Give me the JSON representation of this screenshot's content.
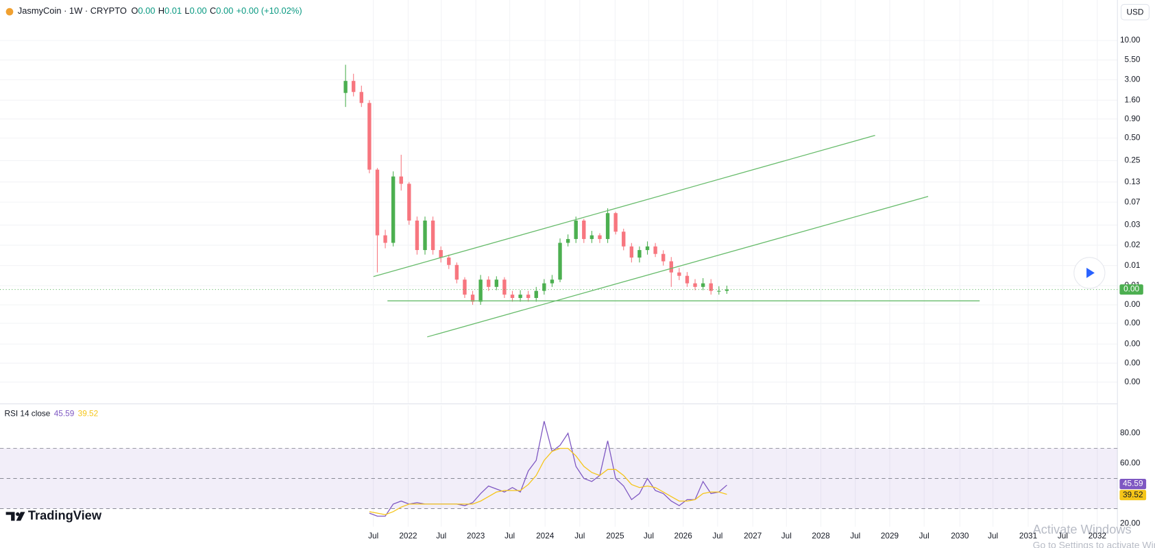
{
  "header": {
    "symbol": "JasmyCoin · 1W · CRYPTO",
    "ohlc": [
      {
        "key": "O",
        "value": "0.00"
      },
      {
        "key": "H",
        "value": "0.01"
      },
      {
        "key": "L",
        "value": "0.00"
      },
      {
        "key": "C",
        "value": "0.00"
      }
    ],
    "change": "+0.00 (+10.02%)",
    "currency": "USD"
  },
  "charts": [
    {
      "type": "candlestick",
      "log": true,
      "grid": true,
      "up_color": "#4caf50",
      "down_color": "#f7767f",
      "xlim": [
        -261,
        583
      ],
      "ylim": [
        0.000147,
        17.6
      ],
      "xticks": [
        {
          "value": 21,
          "label": "Jul"
        },
        {
          "value": 47.3,
          "label": "2022"
        },
        {
          "value": 72.3,
          "label": "Jul"
        },
        {
          "value": 98.4,
          "label": "2023"
        },
        {
          "value": 124,
          "label": "Jul"
        },
        {
          "value": 150.7,
          "label": "2024"
        },
        {
          "value": 176.9,
          "label": "Jul"
        },
        {
          "value": 203.6,
          "label": "2025"
        },
        {
          "value": 229,
          "label": "Jul"
        },
        {
          "value": 255,
          "label": "2026"
        },
        {
          "value": 281,
          "label": "Jul"
        },
        {
          "value": 307.6,
          "label": "2027"
        },
        {
          "value": 333,
          "label": "Jul"
        },
        {
          "value": 359,
          "label": "2028"
        },
        {
          "value": 385,
          "label": "Jul"
        },
        {
          "value": 411,
          "label": "2029"
        },
        {
          "value": 437,
          "label": "Jul"
        },
        {
          "value": 464,
          "label": "2030"
        },
        {
          "value": 489,
          "label": "Jul"
        },
        {
          "value": 515.6,
          "label": "2031"
        },
        {
          "value": 541.7,
          "label": "Jul"
        },
        {
          "value": 567.8,
          "label": "2032"
        }
      ],
      "yticks": [
        {
          "value": 10,
          "label": "10.00"
        },
        {
          "value": 5.5,
          "label": "5.50"
        },
        {
          "value": 3,
          "label": "3.00"
        },
        {
          "value": 1.6,
          "label": "1.60"
        },
        {
          "value": 0.9,
          "label": "0.90"
        },
        {
          "value": 0.5,
          "label": "0.50"
        },
        {
          "value": 0.25,
          "label": "0.25"
        },
        {
          "value": 0.13,
          "label": "0.13"
        },
        {
          "value": 0.07,
          "label": "0.07"
        },
        {
          "value": 0.0347,
          "label": "0.03"
        },
        {
          "value": 0.0187,
          "label": "0.02"
        },
        {
          "value": 0.01,
          "label": "0.01"
        },
        {
          "value": 0.0054,
          "label": "0.01"
        },
        {
          "value": 0.003,
          "label": "0.00"
        },
        {
          "value": 0.0017,
          "label": "0.00"
        },
        {
          "value": 0.0009,
          "label": "0.00"
        },
        {
          "value": 0.0005,
          "label": "0.00"
        },
        {
          "value": 0.00028,
          "label": "0.00"
        }
      ],
      "x": [
        0,
        6,
        12,
        18,
        24,
        30,
        36,
        42,
        48,
        54,
        60,
        66,
        72,
        78,
        84,
        90,
        96,
        102,
        108,
        114,
        120,
        126,
        132,
        138,
        144,
        150,
        156,
        162,
        168,
        174,
        180,
        186,
        192,
        198,
        204,
        210,
        216,
        222,
        228,
        234,
        240,
        246,
        252,
        258,
        264,
        270,
        276,
        282,
        288
      ],
      "open": [
        2.0,
        2.89,
        2.06,
        1.47,
        0.19,
        0.0253,
        0.0201,
        0.154,
        0.123,
        0.0398,
        0.0161,
        0.0398,
        0.0161,
        0.0128,
        0.0102,
        0.0065,
        0.0041,
        0.0033,
        0.0065,
        0.0052,
        0.0065,
        0.0041,
        0.0037,
        0.0041,
        0.0037,
        0.0046,
        0.0058,
        0.0065,
        0.0201,
        0.0226,
        0.0398,
        0.0226,
        0.0253,
        0.0226,
        0.05,
        0.0283,
        0.018,
        0.0128,
        0.0161,
        0.018,
        0.0143,
        0.0114,
        0.0081,
        0.0073,
        0.0058,
        0.0052,
        0.0058,
        0.0046,
        0.0046
      ],
      "high": [
        4.75,
        3.6,
        2.5,
        1.6,
        0.2,
        0.03,
        0.18,
        0.3,
        0.13,
        0.045,
        0.045,
        0.045,
        0.018,
        0.014,
        0.011,
        0.007,
        0.0046,
        0.0075,
        0.0072,
        0.0072,
        0.007,
        0.0046,
        0.0047,
        0.0046,
        0.0052,
        0.0066,
        0.0075,
        0.023,
        0.026,
        0.045,
        0.042,
        0.029,
        0.027,
        0.058,
        0.052,
        0.031,
        0.02,
        0.018,
        0.021,
        0.02,
        0.016,
        0.013,
        0.0093,
        0.0082,
        0.0066,
        0.0068,
        0.0066,
        0.0053,
        0.0054
      ],
      "low": [
        1.3,
        1.8,
        1.3,
        0.17,
        0.0081,
        0.017,
        0.018,
        0.1,
        0.035,
        0.014,
        0.014,
        0.014,
        0.011,
        0.009,
        0.0058,
        0.0037,
        0.003,
        0.003,
        0.0046,
        0.0047,
        0.0037,
        0.0033,
        0.0033,
        0.0033,
        0.0033,
        0.0041,
        0.0052,
        0.006,
        0.018,
        0.02,
        0.02,
        0.02,
        0.02,
        0.02,
        0.026,
        0.016,
        0.011,
        0.011,
        0.014,
        0.013,
        0.01,
        0.0052,
        0.0064,
        0.0052,
        0.0047,
        0.0047,
        0.0041,
        0.0041,
        0.0042
      ],
      "close": [
        2.89,
        2.06,
        1.47,
        0.19,
        0.0253,
        0.0201,
        0.154,
        0.123,
        0.0398,
        0.0161,
        0.0398,
        0.0161,
        0.0128,
        0.0102,
        0.0065,
        0.0041,
        0.0033,
        0.0065,
        0.0052,
        0.0065,
        0.0041,
        0.0037,
        0.0041,
        0.0037,
        0.0046,
        0.0058,
        0.0065,
        0.0201,
        0.0226,
        0.0398,
        0.0226,
        0.0253,
        0.0226,
        0.05,
        0.0283,
        0.018,
        0.0128,
        0.0161,
        0.018,
        0.0143,
        0.0114,
        0.0081,
        0.0073,
        0.0058,
        0.0052,
        0.0058,
        0.0046,
        0.0046,
        0.0048
      ],
      "last_price": {
        "value": 0.0048,
        "label": "0.00"
      }
    },
    {
      "type": "line",
      "title": "RSI 14 close",
      "xlim": [
        -261,
        583
      ],
      "ylim": [
        6.34,
        98.05
      ],
      "yticks": [
        {
          "value": 80,
          "label": "80.00"
        },
        {
          "value": 60,
          "label": "60.00"
        },
        {
          "value": 20,
          "label": "20.00"
        }
      ],
      "band": [
        30,
        70
      ],
      "midline": 50,
      "band_color": "#7e57c2",
      "x": [
        0,
        6,
        12,
        18,
        24,
        30,
        36,
        42,
        48,
        54,
        60,
        66,
        72,
        78,
        84,
        90,
        96,
        102,
        108,
        114,
        120,
        126,
        132,
        138,
        144,
        150,
        156,
        162,
        168,
        174,
        180,
        186,
        192,
        198,
        204,
        210,
        216,
        222,
        228,
        234,
        240,
        246,
        252,
        258,
        264,
        270,
        276,
        282,
        288
      ],
      "series": [
        {
          "color": "#7e57c2",
          "values": [
            null,
            null,
            null,
            27,
            25,
            25,
            33,
            35,
            33,
            34,
            33,
            33,
            33,
            33,
            33,
            32,
            34,
            40,
            45,
            43,
            41,
            44,
            41,
            55,
            62,
            88,
            68,
            72,
            80,
            58,
            50,
            48,
            52,
            75,
            50,
            45,
            36,
            40,
            50,
            42,
            40,
            35,
            32,
            36,
            36,
            48,
            40,
            41,
            45.59
          ]
        },
        {
          "color": "#f5c518",
          "values": [
            null,
            null,
            null,
            28,
            27,
            26,
            28,
            31,
            33,
            33,
            33,
            33,
            33,
            33,
            33,
            33,
            33,
            35,
            38,
            41,
            42,
            42,
            42,
            46,
            52,
            62,
            68,
            70,
            70,
            65,
            58,
            54,
            52,
            56,
            56,
            52,
            46,
            44,
            45,
            44,
            41,
            38,
            35,
            35,
            36,
            40,
            41,
            41,
            39.52
          ]
        }
      ]
    }
  ],
  "brand": "TradingView",
  "watermark": {
    "title": "Activate Windows",
    "subtitle": "Go to Settings to activate Windows."
  }
}
